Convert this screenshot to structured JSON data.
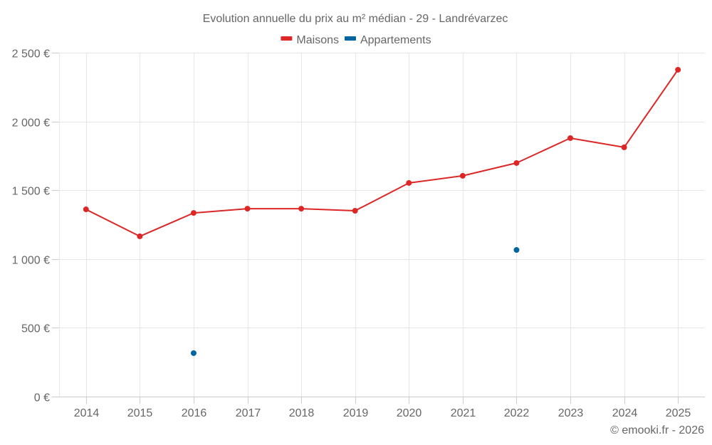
{
  "chart_data": {
    "type": "line",
    "title": "Evolution annuelle du prix au m² médian - 29 - Landrévarzec",
    "xlabel": "",
    "ylabel": "",
    "categories": [
      "2014",
      "2015",
      "2016",
      "2017",
      "2018",
      "2019",
      "2020",
      "2021",
      "2022",
      "2023",
      "2024",
      "2025"
    ],
    "series": [
      {
        "name": "Maisons",
        "color": "#dd2727",
        "line": true,
        "values": [
          1361,
          1165,
          1335,
          1366,
          1366,
          1351,
          1553,
          1605,
          1698,
          1879,
          1812,
          2376
        ]
      },
      {
        "name": "Appartements",
        "color": "#00659e",
        "line": false,
        "values": [
          null,
          null,
          316,
          null,
          null,
          null,
          null,
          null,
          1066,
          null,
          null,
          null
        ]
      }
    ],
    "ylim": [
      0,
      2500
    ],
    "yticks": [
      0,
      500,
      1000,
      1500,
      2000,
      2500
    ],
    "ytick_labels": [
      "0 €",
      "500 €",
      "1 000 €",
      "1 500 €",
      "2 000 €",
      "2 500 €"
    ],
    "grid": true,
    "legend_position": "top-center"
  },
  "credit": "© emooki.fr - 2026"
}
